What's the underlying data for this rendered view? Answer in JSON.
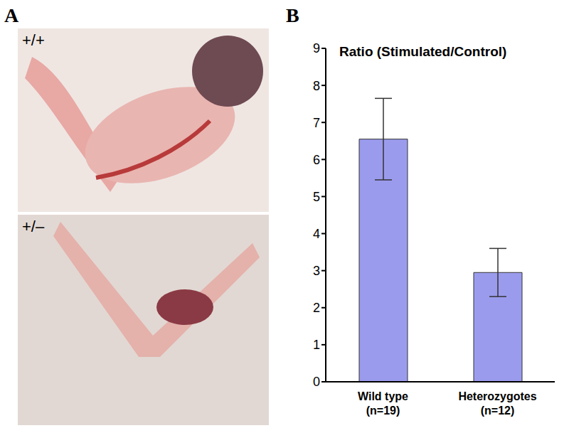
{
  "panel_labels": [
    "A",
    "B"
  ],
  "photo_labels": [
    "+/+",
    "+/–"
  ],
  "chart_data": {
    "type": "bar",
    "title": "Ratio (Stimulated/Control)",
    "categories": [
      "Wild type\n(n=19)",
      "Heterozygotes\n(n=12)"
    ],
    "values": [
      6.55,
      2.95
    ],
    "errors": [
      1.1,
      0.65
    ],
    "color": "#9b9bee",
    "ylim": [
      0,
      9
    ],
    "yticks": [
      0,
      1,
      2,
      3,
      4,
      5,
      6,
      7,
      8,
      9
    ],
    "grid": false
  }
}
